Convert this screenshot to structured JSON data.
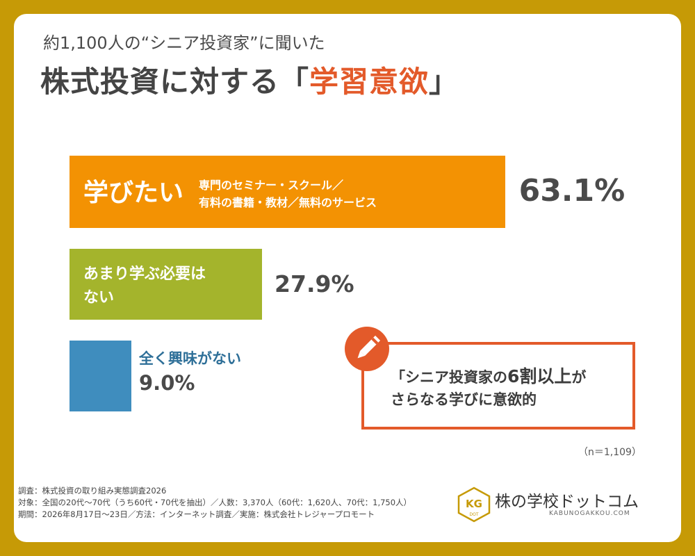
{
  "header": {
    "subtitle": "約1,100人の“シニア投資家”に聞いた",
    "title_main": "株式投資に対する「",
    "title_accent": "学習意欲",
    "title_close": "」"
  },
  "chart_data": {
    "type": "bar",
    "orientation": "horizontal",
    "categories": [
      "学びたい",
      "あまり学ぶ必要はない",
      "全く興味がない"
    ],
    "values": [
      63.1,
      27.9,
      9.0
    ],
    "value_labels": [
      "63.1%",
      "27.9%",
      "9.0%"
    ],
    "category_details": [
      "専門のセミナー・スクール／",
      "有料の書籍・教材／無料のサービス"
    ],
    "bar2_lines": [
      "あまり学ぶ必要は",
      "ない"
    ],
    "colors": [
      "#f39203",
      "#a4b42c",
      "#3f8dbe"
    ],
    "xlim": [
      0,
      100
    ],
    "unit": "%"
  },
  "callout": {
    "line1_pre": "「シニア投資家の",
    "line1_emph": "6割以上",
    "line1_post": "が",
    "line2": "さらなる学びに意欲的",
    "icon": "pencil-icon"
  },
  "sample_size": "（n＝1,109）",
  "footer": {
    "lines": [
      "調査：株式投資の取り組み実態調査2026",
      "対象：全国の20代〜70代（うち60代・70代を抽出）／人数：3,370人（60代：1,620人、70代：1,750人）",
      "期間：2026年8月17日〜23日／方法：インターネット調査／実施：株式会社トレジャープロモート"
    ]
  },
  "logo": {
    "name": "株の学校ドットコム",
    "url": "KABUNOGAKKOU.COM",
    "emblem_text": "KG",
    "emblem_small": "DOT",
    "color": "#c69a06"
  }
}
